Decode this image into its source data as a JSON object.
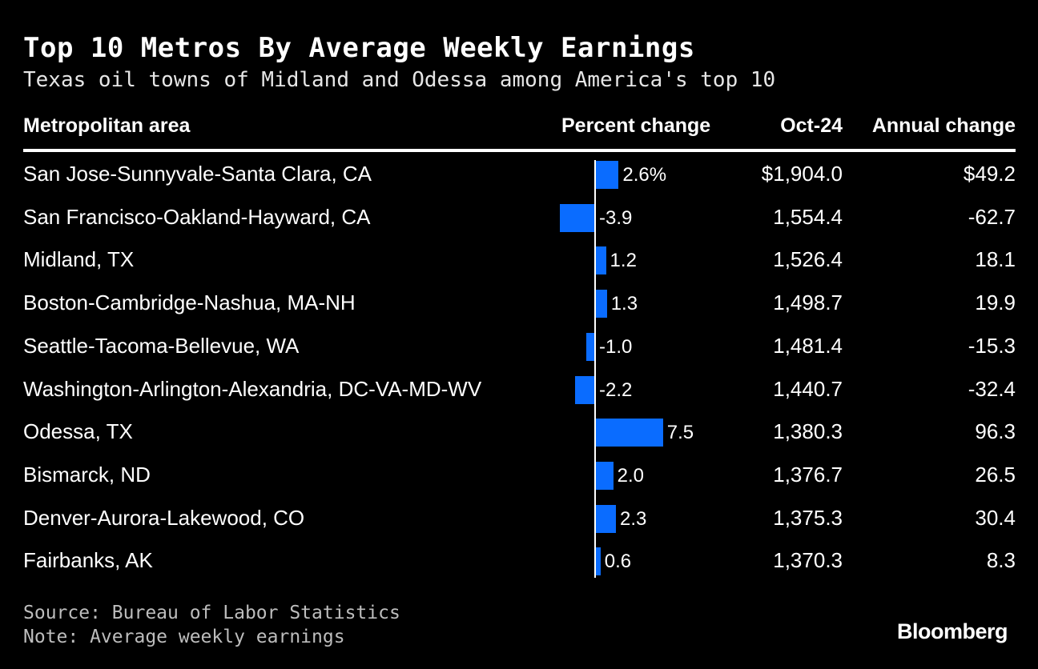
{
  "title": "Top 10 Metros By Average Weekly Earnings",
  "subtitle": "Texas oil towns of Midland and Odessa among America's top 10",
  "headers": {
    "metro": "Metropolitan area",
    "pct": "Percent change",
    "oct": "Oct-24",
    "annual": "Annual change"
  },
  "chart_data": {
    "type": "table",
    "columns": [
      "Metropolitan area",
      "Percent change",
      "Oct-24",
      "Annual change"
    ],
    "rows": [
      {
        "metro": "San Jose-Sunnyvale-Santa Clara, CA",
        "pct": 2.6,
        "pct_label": "2.6%",
        "oct": "$1,904.0",
        "annual": "$49.2"
      },
      {
        "metro": "San Francisco-Oakland-Hayward, CA",
        "pct": -3.9,
        "pct_label": "-3.9",
        "oct": "1,554.4",
        "annual": "-62.7"
      },
      {
        "metro": "Midland, TX",
        "pct": 1.2,
        "pct_label": "1.2",
        "oct": "1,526.4",
        "annual": "18.1"
      },
      {
        "metro": "Boston-Cambridge-Nashua, MA-NH",
        "pct": 1.3,
        "pct_label": "1.3",
        "oct": "1,498.7",
        "annual": "19.9"
      },
      {
        "metro": "Seattle-Tacoma-Bellevue, WA",
        "pct": -1.0,
        "pct_label": "-1.0",
        "oct": "1,481.4",
        "annual": "-15.3"
      },
      {
        "metro": "Washington-Arlington-Alexandria, DC-VA-MD-WV",
        "pct": -2.2,
        "pct_label": "-2.2",
        "oct": "1,440.7",
        "annual": "-32.4"
      },
      {
        "metro": "Odessa, TX",
        "pct": 7.5,
        "pct_label": "7.5",
        "oct": "1,380.3",
        "annual": "96.3"
      },
      {
        "metro": "Bismarck, ND",
        "pct": 2.0,
        "pct_label": "2.0",
        "oct": "1,376.7",
        "annual": "26.5"
      },
      {
        "metro": "Denver-Aurora-Lakewood, CO",
        "pct": 2.3,
        "pct_label": "2.3",
        "oct": "1,375.3",
        "annual": "30.4"
      },
      {
        "metro": "Fairbanks, AK",
        "pct": 0.6,
        "pct_label": "0.6",
        "oct": "1,370.3",
        "annual": "8.3"
      }
    ],
    "bar_color": "#0a6cff"
  },
  "footer": {
    "source": "Source: Bureau of Labor Statistics",
    "note": "Note: Average weekly earnings",
    "brand": "Bloomberg"
  }
}
